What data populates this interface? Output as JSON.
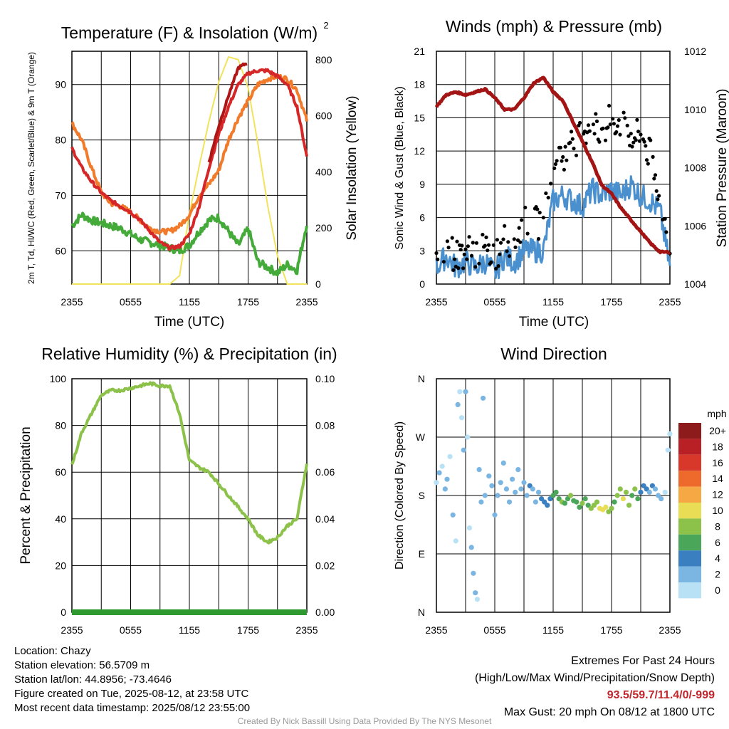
{
  "colors": {
    "temp": "#d62728",
    "heat_index": "#b01515",
    "dewpoint": "#44aa3a",
    "temp9m": "#f17a2b",
    "insolation": "#f2e35d",
    "wind": "#4a90cf",
    "gust": "#000000",
    "pressure": "#a31515",
    "rh": "#8cc24a",
    "precip": "#2f9a2f"
  },
  "chart_data": [
    {
      "name": "temperature-insolation",
      "type": "line",
      "title": "Temperature (F) & Insolation (W/m²)",
      "xlabel": "Time (UTC)",
      "ylabel": "2m T, Td, HI/WC (Red, Green, Scarlet/Blue) & 9m T (Orange)",
      "ylabel_right": "Solar Insolation (Yellow)",
      "x_ticks": [
        "2355",
        "0555",
        "1155",
        "1755",
        "2355"
      ],
      "y_ticks": [
        60,
        70,
        80,
        90
      ],
      "y_ticks_right": [
        0,
        200,
        400,
        600,
        800
      ],
      "ylim": [
        54,
        96
      ],
      "ylim_right": [
        0,
        830
      ],
      "x_hours": [
        0,
        1,
        2,
        3,
        4,
        5,
        6,
        7,
        8,
        9,
        10,
        11,
        12,
        13,
        14,
        15,
        16,
        17,
        18,
        19,
        20,
        21,
        22,
        23,
        24
      ],
      "series": [
        {
          "key": "t2m",
          "values": [
            78.5,
            75.0,
            72.5,
            70.5,
            69.0,
            68.0,
            67.0,
            65.5,
            63.5,
            61.5,
            60.5,
            60.8,
            63.0,
            68.0,
            75.0,
            81.0,
            86.0,
            90.0,
            92.0,
            92.5,
            92.5,
            91.5,
            90.0,
            86.0,
            77.0
          ]
        },
        {
          "key": "heat_index",
          "values": [
            null,
            null,
            null,
            null,
            null,
            null,
            null,
            null,
            null,
            null,
            null,
            null,
            null,
            null,
            76.0,
            82.5,
            88.0,
            93.0,
            94.0,
            null,
            null,
            null,
            null,
            null,
            null
          ]
        },
        {
          "key": "t9m",
          "values": [
            83.0,
            80.0,
            75.0,
            70.5,
            68.5,
            68.0,
            67.0,
            65.5,
            64.0,
            63.5,
            63.5,
            64.5,
            66.5,
            70.0,
            72.0,
            74.5,
            80.0,
            84.0,
            87.0,
            90.0,
            91.0,
            91.5,
            91.0,
            89.0,
            83.5
          ]
        },
        {
          "key": "dewpoint",
          "values": [
            64.5,
            66.5,
            65.5,
            65.0,
            64.5,
            64.0,
            63.0,
            62.0,
            61.5,
            61.0,
            60.5,
            60.0,
            61.0,
            63.5,
            65.5,
            66.0,
            63.5,
            61.0,
            64.0,
            58.0,
            57.0,
            56.0,
            57.5,
            56.5,
            65.0
          ]
        },
        {
          "key": "insolation",
          "axis": "right",
          "values": [
            0,
            0,
            0,
            0,
            0,
            0,
            0,
            0,
            0,
            0,
            0,
            30,
            250,
            420,
            580,
            720,
            810,
            800,
            700,
            500,
            280,
            100,
            0,
            0,
            0
          ]
        }
      ]
    },
    {
      "name": "winds-pressure",
      "type": "line",
      "title": "Winds (mph) & Pressure (mb)",
      "xlabel": "Time (UTC)",
      "ylabel": "Sonic Wind & Gust (Blue, Black)",
      "ylabel_right": "Station Pressure (Maroon)",
      "x_ticks": [
        "2355",
        "0555",
        "1155",
        "1755",
        "2355"
      ],
      "y_ticks": [
        0,
        3,
        6,
        9,
        12,
        15,
        18,
        21
      ],
      "y_ticks_right": [
        1004,
        1006,
        1008,
        1010,
        1012
      ],
      "ylim": [
        0,
        21
      ],
      "ylim_right": [
        1004,
        1012
      ],
      "x_hours": [
        0,
        1,
        2,
        3,
        4,
        5,
        6,
        7,
        8,
        9,
        10,
        11,
        12,
        13,
        14,
        15,
        16,
        17,
        18,
        19,
        20,
        21,
        22,
        23,
        24
      ],
      "series": [
        {
          "key": "wind",
          "values": [
            1.5,
            2.5,
            1.5,
            2.0,
            1.5,
            2.0,
            1.0,
            2.5,
            2.0,
            3.0,
            3.0,
            3.0,
            7.5,
            8.0,
            7.5,
            7.0,
            8.5,
            8.0,
            8.5,
            8.0,
            9.0,
            8.0,
            7.5,
            6.5,
            1.5
          ]
        },
        {
          "key": "gust",
          "type": "scatter",
          "values": [
            2.0,
            3.5,
            2.5,
            3.0,
            3.0,
            3.0,
            2.5,
            4.0,
            4.0,
            5.5,
            5.5,
            5.5,
            12.0,
            11.5,
            12.5,
            14.0,
            14.5,
            13.5,
            15.0,
            14.5,
            13.5,
            13.5,
            11.5,
            8.0,
            2.5
          ]
        },
        {
          "key": "pressure",
          "axis": "right",
          "values": [
            1010.1,
            1010.5,
            1010.6,
            1010.5,
            1010.6,
            1010.7,
            1010.4,
            1010.0,
            1010.0,
            1010.4,
            1010.9,
            1011.1,
            1010.6,
            1010.3,
            1009.6,
            1008.9,
            1008.2,
            1007.4,
            1007.1,
            1006.6,
            1006.2,
            1005.8,
            1005.4,
            1005.1,
            1005.1
          ]
        }
      ]
    },
    {
      "name": "humidity-precipitation",
      "type": "line",
      "title": "Relative Humidity (%) & Precipitation (in)",
      "xlabel": "",
      "ylabel": "Percent & Precipitation",
      "x_ticks": [
        "2355",
        "0555",
        "1155",
        "1755",
        "2355"
      ],
      "y_ticks": [
        0,
        20,
        40,
        60,
        80,
        100
      ],
      "y_ticks_right": [
        "0.00",
        "0.02",
        "0.04",
        "0.06",
        "0.08",
        "0.10"
      ],
      "ylim": [
        0,
        100
      ],
      "ylim_right": [
        0,
        0.1
      ],
      "x_hours": [
        0,
        1,
        2,
        3,
        4,
        5,
        6,
        7,
        8,
        9,
        10,
        11,
        12,
        13,
        14,
        15,
        16,
        17,
        18,
        19,
        20,
        21,
        22,
        23,
        24
      ],
      "series": [
        {
          "key": "rh",
          "values": [
            63,
            77,
            85,
            93,
            95,
            95,
            96,
            97,
            98,
            97,
            97,
            85,
            65,
            62,
            60,
            55,
            50,
            45,
            40,
            33,
            30,
            32,
            37,
            40,
            64
          ]
        },
        {
          "key": "precip",
          "axis": "right",
          "values": [
            0,
            0,
            0,
            0,
            0,
            0,
            0,
            0,
            0,
            0,
            0,
            0,
            0,
            0,
            0,
            0,
            0,
            0,
            0,
            0,
            0,
            0,
            0,
            0,
            0
          ]
        }
      ]
    },
    {
      "name": "wind-direction",
      "type": "scatter",
      "title": "Wind Direction",
      "ylabel": "Direction (Colored By Speed)",
      "x_ticks": [
        "2355",
        "0555",
        "1155",
        "1755",
        "2355"
      ],
      "y_ticks": [
        "N",
        "E",
        "S",
        "W",
        "N"
      ],
      "ylim": [
        0,
        360
      ],
      "colorbar": {
        "unit": "mph",
        "labels": [
          "20+",
          "18",
          "16",
          "14",
          "12",
          "10",
          "8",
          "6",
          "4",
          "2",
          "0"
        ],
        "colors": [
          "#8e1b1b",
          "#b82025",
          "#d8382a",
          "#ee6a2c",
          "#f6a844",
          "#e9dd56",
          "#8cc24a",
          "#4aa75a",
          "#3a7fc0",
          "#7bb6e2",
          "#b9e1f5"
        ]
      },
      "points": [
        [
          0.0,
          200,
          1.5
        ],
        [
          0.3,
          215,
          2
        ],
        [
          0.6,
          225,
          1
        ],
        [
          0.9,
          190,
          2.5
        ],
        [
          1.1,
          205,
          3
        ],
        [
          1.4,
          240,
          1
        ],
        [
          1.7,
          150,
          2
        ],
        [
          2.0,
          110,
          1
        ],
        [
          2.2,
          320,
          2
        ],
        [
          2.4,
          340,
          1
        ],
        [
          2.6,
          300,
          1.5
        ],
        [
          2.8,
          250,
          2
        ],
        [
          3.0,
          340,
          3
        ],
        [
          3.2,
          270,
          1
        ],
        [
          3.4,
          130,
          1
        ],
        [
          3.6,
          100,
          2.5
        ],
        [
          3.8,
          60,
          2
        ],
        [
          4.0,
          30,
          3
        ],
        [
          4.2,
          20,
          1
        ],
        [
          4.4,
          220,
          2
        ],
        [
          4.6,
          170,
          3
        ],
        [
          4.8,
          330,
          3
        ],
        [
          5.0,
          180,
          2
        ],
        [
          5.4,
          210,
          2
        ],
        [
          5.7,
          195,
          3
        ],
        [
          6.0,
          150,
          2
        ],
        [
          6.3,
          180,
          2.5
        ],
        [
          6.6,
          200,
          3
        ],
        [
          6.9,
          230,
          3
        ],
        [
          7.2,
          190,
          3.5
        ],
        [
          7.5,
          170,
          2
        ],
        [
          7.8,
          205,
          3
        ],
        [
          8.1,
          185,
          3
        ],
        [
          8.4,
          220,
          3.5
        ],
        [
          8.7,
          190,
          3
        ],
        [
          9.0,
          200,
          3
        ],
        [
          9.3,
          180,
          3
        ],
        [
          9.6,
          195,
          4
        ],
        [
          9.9,
          190,
          2.5
        ],
        [
          10.2,
          170,
          3
        ],
        [
          10.5,
          185,
          3
        ],
        [
          10.8,
          175,
          4
        ],
        [
          11.1,
          170,
          4.5
        ],
        [
          11.4,
          165,
          5
        ],
        [
          11.7,
          175,
          5
        ],
        [
          12.0,
          180,
          6
        ],
        [
          12.3,
          185,
          6.5
        ],
        [
          12.6,
          175,
          7
        ],
        [
          12.9,
          170,
          8
        ],
        [
          13.2,
          168,
          7
        ],
        [
          13.5,
          175,
          6.5
        ],
        [
          13.8,
          180,
          8
        ],
        [
          14.1,
          172,
          7
        ],
        [
          14.4,
          170,
          6
        ],
        [
          14.7,
          162,
          7.5
        ],
        [
          15.0,
          168,
          8
        ],
        [
          15.3,
          175,
          7
        ],
        [
          15.6,
          165,
          6.5
        ],
        [
          15.9,
          160,
          8
        ],
        [
          16.2,
          165,
          9
        ],
        [
          16.5,
          170,
          8.5
        ],
        [
          16.8,
          160,
          10
        ],
        [
          17.1,
          158,
          11
        ],
        [
          17.4,
          162,
          10
        ],
        [
          17.7,
          155,
          9
        ],
        [
          18.0,
          160,
          8
        ],
        [
          18.3,
          170,
          7
        ],
        [
          18.6,
          180,
          8
        ],
        [
          18.9,
          190,
          9.5
        ],
        [
          19.2,
          175,
          10
        ],
        [
          19.5,
          185,
          9
        ],
        [
          19.8,
          165,
          8
        ],
        [
          20.1,
          180,
          7
        ],
        [
          20.4,
          190,
          8
        ],
        [
          20.7,
          175,
          6
        ],
        [
          21.0,
          185,
          5
        ],
        [
          21.3,
          195,
          5.5
        ],
        [
          21.6,
          190,
          4
        ],
        [
          21.9,
          185,
          3.5
        ],
        [
          22.2,
          195,
          4
        ],
        [
          22.5,
          190,
          3.5
        ],
        [
          22.8,
          180,
          3
        ],
        [
          23.1,
          175,
          2.5
        ],
        [
          23.5,
          185,
          1
        ],
        [
          23.8,
          250,
          1
        ],
        [
          24.0,
          275,
          0.5
        ]
      ]
    }
  ],
  "info": {
    "location": "Location: Chazy",
    "elevation": "Station elevation: 56.5709 m",
    "latlon": "Station lat/lon: 44.8956; -73.4646",
    "created": "Figure created on Tue, 2025-08-12, at 23:58 UTC",
    "recent": "Most recent data timestamp: 2025/08/12 23:55:00"
  },
  "extremes": {
    "title": "Extremes For Past 24 Hours",
    "subtitle": "(High/Low/Max Wind/Precipitation/Snow Depth)",
    "values": "93.5/59.7/11.4/0/-999",
    "gust": "Max Gust: 20 mph On 08/12 at 1800 UTC"
  },
  "credit": "Created By Nick Bassill Using Data Provided By The NYS Mesonet"
}
